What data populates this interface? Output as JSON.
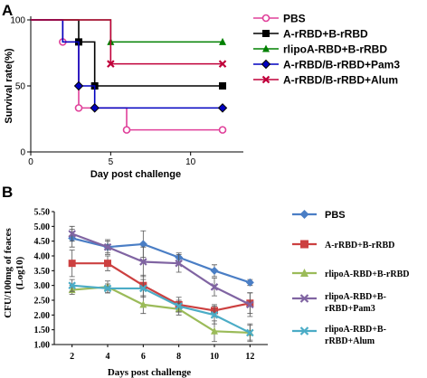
{
  "panel_a": {
    "letter": "A",
    "ylabel": "Survival rate(%)",
    "xlabel": "Day post challenge"
  },
  "panel_b": {
    "letter": "B",
    "ylabel": "CFU/100mg of feaces",
    "ylabel2": "(Log10)",
    "xlabel": "Days post challenge"
  },
  "chart_data": [
    {
      "type": "line",
      "title": "",
      "xlabel": "Day post challenge",
      "ylabel": "Survival rate(%)",
      "xlim": [
        0,
        13.3
      ],
      "ylim": [
        0,
        100
      ],
      "xticks": [
        0,
        5,
        10
      ],
      "yticks": [
        0,
        50,
        100
      ],
      "step": true,
      "grid": false,
      "legend_position": "right",
      "series": [
        {
          "name": "PBS",
          "color": "#e0409a",
          "marker": "open-circle",
          "x": [
            0,
            2,
            3,
            4,
            6,
            12
          ],
          "y": [
            100,
            83.3,
            33.3,
            33.3,
            16.7,
            16.7
          ],
          "marker_x": [
            2,
            3,
            6,
            12
          ]
        },
        {
          "name": "A-rRBD+B-rRBD",
          "color": "#000000",
          "marker": "filled-square",
          "x": [
            0,
            3,
            4,
            12
          ],
          "y": [
            100,
            83.3,
            50,
            50
          ],
          "marker_x": [
            3,
            4,
            12
          ]
        },
        {
          "name": "rlipoA-RBD+B-rRBD",
          "color": "#008000",
          "marker": "filled-triangle",
          "x": [
            0,
            5,
            12
          ],
          "y": [
            100,
            83.3,
            83.3
          ],
          "marker_x": [
            5,
            12
          ]
        },
        {
          "name": "A-rRBD/B-rRBD+Pam3",
          "color": "#0000c0",
          "marker": "filled-diamond",
          "x": [
            0,
            2,
            3,
            4,
            12
          ],
          "y": [
            100,
            83.3,
            50,
            33.3,
            33.3
          ],
          "marker_x": [
            3,
            4,
            12
          ]
        },
        {
          "name": "A-rRBD/B-rRBD+Alum",
          "color": "#c0003a",
          "marker": "x",
          "x": [
            0,
            5,
            12
          ],
          "y": [
            100,
            66.7,
            66.7
          ],
          "marker_x": [
            5,
            12
          ]
        }
      ]
    },
    {
      "type": "line",
      "title": "",
      "xlabel": "Days post challenge",
      "ylabel": "CFU/100mg of feaces (Log10)",
      "xlim": [
        1,
        13
      ],
      "ylim": [
        1.0,
        5.5
      ],
      "xticks": [
        2,
        4,
        6,
        8,
        10,
        12
      ],
      "yticks": [
        1.0,
        1.5,
        2.0,
        2.5,
        3.0,
        3.5,
        4.0,
        4.5,
        5.0,
        5.5
      ],
      "tick_labels_y": [
        "1.00",
        "1.50",
        "2.00",
        "2.50",
        "3.00",
        "3.50",
        "4.00",
        "4.50",
        "5.00",
        "5.50"
      ],
      "grid": false,
      "legend_position": "right",
      "series": [
        {
          "name": "PBS",
          "color": "#4a7ec5",
          "marker": "diamond",
          "x": [
            2,
            4,
            6,
            8,
            10,
            12
          ],
          "y": [
            4.6,
            4.3,
            4.4,
            3.95,
            3.5,
            3.1
          ],
          "err": [
            0.3,
            0.2,
            0.45,
            0.15,
            0.2,
            0.1
          ]
        },
        {
          "name": "A-rRBD+B-rRBD",
          "color": "#cc4040",
          "marker": "square",
          "x": [
            2,
            4,
            6,
            8,
            10,
            12
          ],
          "y": [
            3.75,
            3.75,
            3.0,
            2.35,
            2.15,
            2.4
          ],
          "err": [
            0.45,
            0.25,
            0.35,
            0.25,
            0.2,
            0.35
          ]
        },
        {
          "name": "rlipoA-RBD+B-rRBD",
          "color": "#9bbb59",
          "marker": "triangle",
          "x": [
            2,
            4,
            6,
            8,
            10,
            12
          ],
          "y": [
            2.85,
            2.95,
            2.35,
            2.2,
            1.45,
            1.4
          ],
          "err": [
            0.15,
            0.2,
            0.3,
            0.2,
            0.35,
            0.25
          ]
        },
        {
          "name": "rlipoA-RBD+B-rRBD+Pam3",
          "color": "#8064a2",
          "marker": "x",
          "x": [
            2,
            4,
            6,
            8,
            10,
            12
          ],
          "y": [
            4.75,
            4.3,
            3.8,
            3.75,
            2.95,
            2.35
          ],
          "err": [
            0.25,
            0.25,
            0.5,
            0.3,
            0.3,
            0.4
          ]
        },
        {
          "name": "rlipoA-RBD+B-rRBD+Alum",
          "color": "#4bacc6",
          "marker": "x",
          "x": [
            2,
            4,
            6,
            8,
            10,
            12
          ],
          "y": [
            3.0,
            2.9,
            2.9,
            2.3,
            2.0,
            1.4
          ],
          "err": [
            0.2,
            0.15,
            0.3,
            0.2,
            0.3,
            0.3
          ]
        }
      ]
    }
  ]
}
